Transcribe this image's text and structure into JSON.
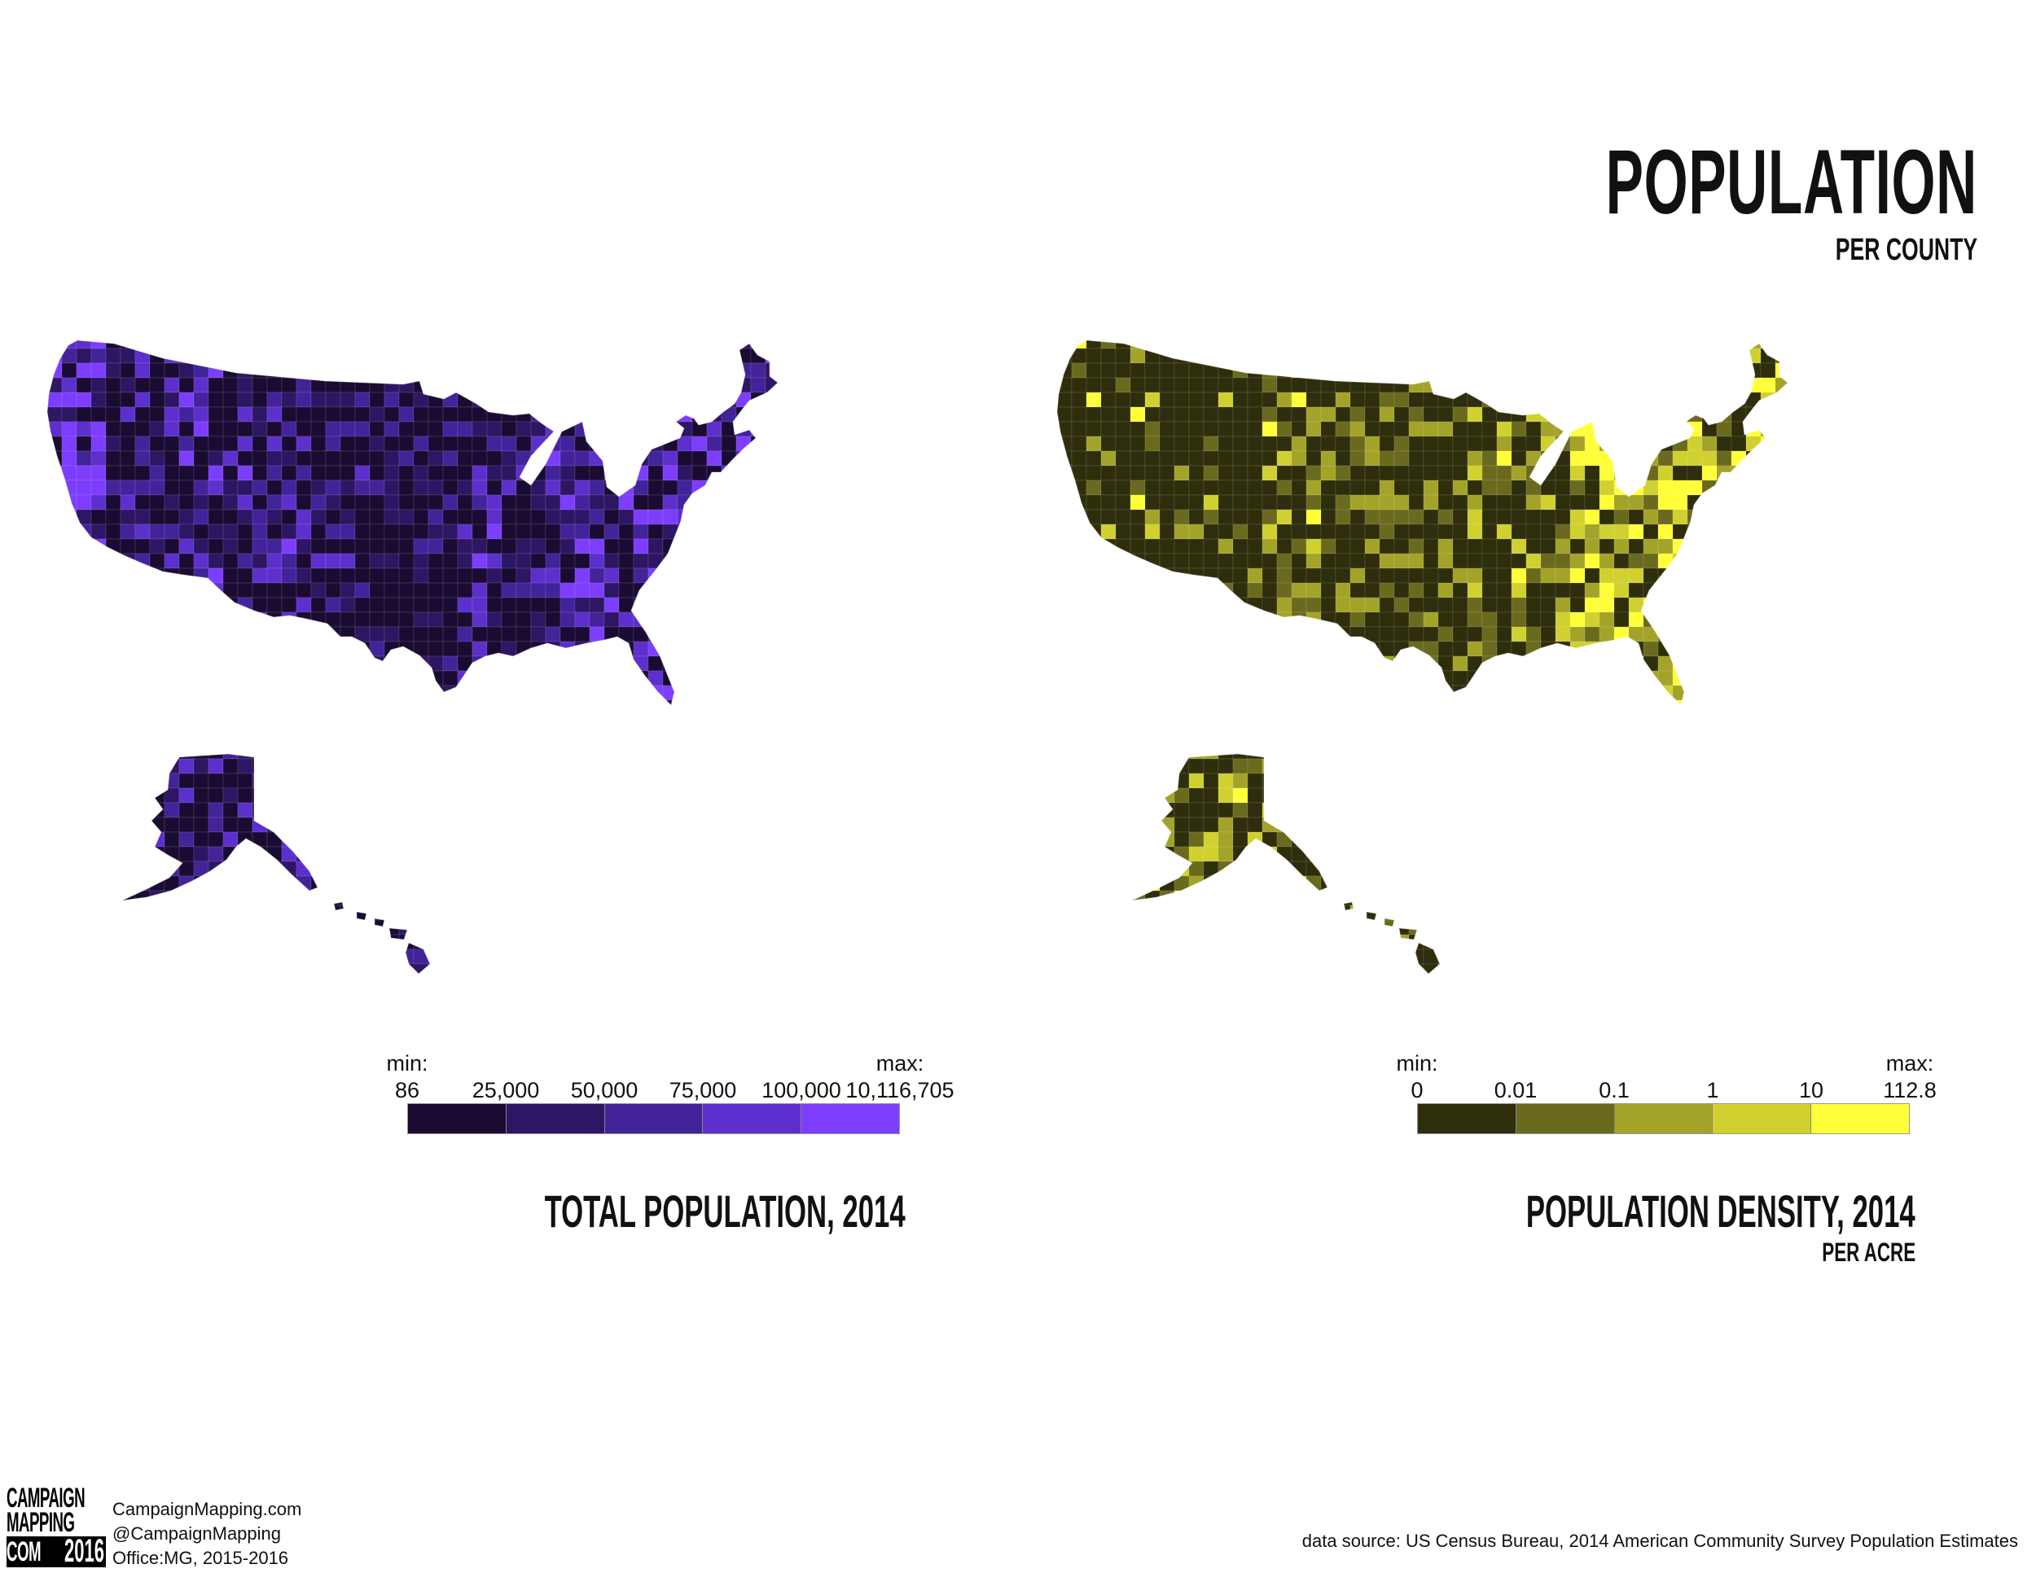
{
  "header": {
    "title": "POPULATION",
    "subtitle": "PER COUNTY"
  },
  "maps": [
    {
      "title": "TOTAL POPULATION, 2014",
      "subtitle": "",
      "legend": {
        "min_label": "min:",
        "max_label": "max:",
        "ticks": [
          "86",
          "25,000",
          "50,000",
          "75,000",
          "100,000",
          "10,116,705"
        ],
        "colors": [
          "#1a0b33",
          "#2d1663",
          "#43239a",
          "#5d2fcc",
          "#7c3dfc"
        ]
      },
      "dominant_color": "#1f0d42",
      "accent_color": "#7c3dfc"
    },
    {
      "title": "POPULATION DENSITY, 2014",
      "subtitle": "PER ACRE",
      "legend": {
        "min_label": "min:",
        "max_label": "max:",
        "ticks": [
          "0",
          "0.01",
          "0.1",
          "1",
          "10",
          "112.8"
        ],
        "colors": [
          "#2e2e0c",
          "#6a6a1e",
          "#a3a32a",
          "#d0d030",
          "#ffff3a"
        ]
      },
      "dominant_color": "#3a3a10",
      "accent_color": "#e0e034"
    }
  ],
  "footer": {
    "logo_lines": [
      "CAMPAIGN",
      "MAPPING",
      "COM"
    ],
    "logo_year": "2016",
    "site": "CampaignMapping.com",
    "handle": "@CampaignMapping",
    "credit": "Office:MG, 2015-2016",
    "source": "data source: US Census Bureau, 2014 American Community Survey Population Estimates"
  }
}
